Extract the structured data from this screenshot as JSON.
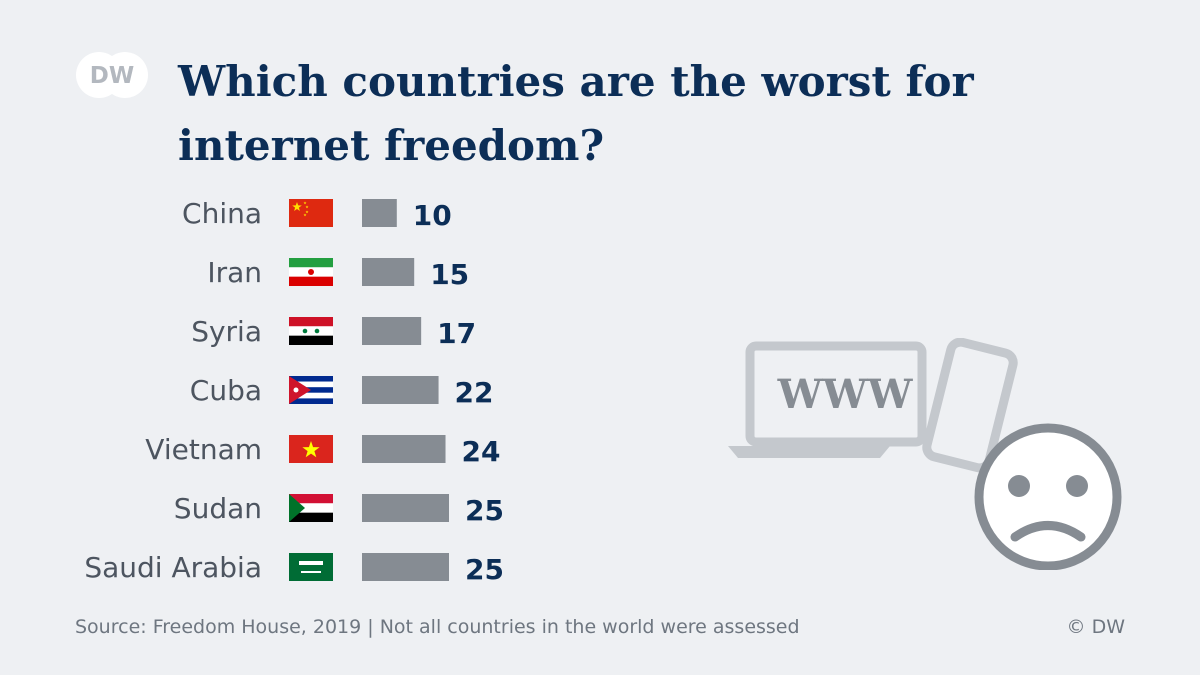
{
  "logo": {
    "text": "DW"
  },
  "title_lines": [
    "Which countries are the worst for",
    "internet freedom?"
  ],
  "source": "Source: Freedom House, 2019 | Not all countries in the world were assessed",
  "credit": "© DW",
  "illustration": {
    "text": "WWW"
  },
  "colors": {
    "bar": "#868c93",
    "value": "#0c2e57",
    "title": "#0c2e57",
    "background": "#eef0f3"
  },
  "chart_data": {
    "type": "bar",
    "orientation": "horizontal",
    "title": "Which countries are the worst for internet freedom?",
    "categories": [
      "China",
      "Iran",
      "Syria",
      "Cuba",
      "Vietnam",
      "Sudan",
      "Saudi Arabia"
    ],
    "values": [
      10,
      15,
      17,
      22,
      24,
      25,
      25
    ],
    "flags": [
      "china-flag-icon",
      "iran-flag-icon",
      "syria-flag-icon",
      "cuba-flag-icon",
      "vietnam-flag-icon",
      "sudan-flag-icon",
      "saudi-arabia-flag-icon"
    ],
    "xlim": [
      0,
      25
    ],
    "grid": false,
    "legend": "none"
  }
}
